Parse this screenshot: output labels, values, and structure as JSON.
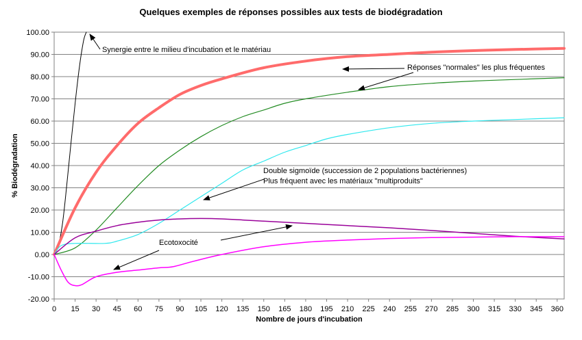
{
  "chart_data": {
    "type": "line",
    "title": "Quelques exemples de réponses possibles aux tests de biodégradation",
    "xlabel": "Nombre de jours d'incubation",
    "ylabel": "% Biodégradation",
    "xlim": [
      0,
      365
    ],
    "ylim": [
      -20,
      100
    ],
    "grid": "horizontal",
    "x_ticks": [
      "0",
      "15",
      "30",
      "45",
      "60",
      "75",
      "90",
      "105",
      "120",
      "135",
      "150",
      "165",
      "180",
      "195",
      "210",
      "225",
      "240",
      "255",
      "270",
      "285",
      "300",
      "315",
      "330",
      "345",
      "360"
    ],
    "y_ticks": [
      "100.00",
      "90.00",
      "80.00",
      "70.00",
      "60.00",
      "50.00",
      "40.00",
      "30.00",
      "20.00",
      "10.00",
      "0.00",
      "-10.00",
      "-20.00"
    ],
    "series": [
      {
        "color": "#000000",
        "x": [
          0,
          3,
          6,
          9,
          12,
          15,
          18,
          21,
          23
        ],
        "y": [
          0,
          4,
          14,
          31,
          50,
          68,
          84,
          96,
          100
        ]
      },
      {
        "color": "#ff6b6b",
        "x": [
          0,
          15,
          30,
          45,
          60,
          75,
          90,
          105,
          120,
          150,
          180,
          210,
          240,
          270,
          300,
          330,
          365
        ],
        "y": [
          0,
          21,
          37,
          49,
          59,
          66,
          72,
          76,
          79,
          84,
          87,
          89,
          90,
          91,
          91.7,
          92.2,
          92.7
        ]
      },
      {
        "color": "#228b22",
        "x": [
          0,
          15,
          30,
          45,
          60,
          75,
          90,
          105,
          120,
          135,
          150,
          165,
          180,
          210,
          240,
          270,
          300,
          330,
          365
        ],
        "y": [
          0,
          3,
          11,
          21,
          31,
          40,
          47,
          53,
          58,
          62,
          65,
          68,
          70,
          73,
          75.5,
          77,
          78,
          78.7,
          79.5
        ]
      },
      {
        "color": "#2ee8ee",
        "x": [
          0,
          5,
          15,
          36,
          45,
          60,
          75,
          90,
          105,
          120,
          135,
          150,
          165,
          180,
          195,
          210,
          240,
          270,
          300,
          330,
          365
        ],
        "y": [
          0,
          4,
          5,
          5,
          6,
          9,
          14,
          20,
          26,
          32,
          38,
          42,
          46,
          49,
          52,
          54,
          57,
          59,
          60,
          60.7,
          61.5
        ]
      },
      {
        "color": "#990099",
        "x": [
          0,
          15,
          30,
          45,
          60,
          75,
          90,
          105,
          120,
          135,
          150,
          180,
          210,
          240,
          270,
          300,
          330,
          365
        ],
        "y": [
          0,
          7.5,
          10.5,
          13,
          14.5,
          15.5,
          16,
          16.2,
          16,
          15.5,
          15,
          14,
          13,
          12,
          10.8,
          9.5,
          8.2,
          7
        ]
      },
      {
        "color": "#ff00ff",
        "x": [
          0,
          5,
          10,
          15,
          20,
          30,
          45,
          60,
          75,
          85,
          100,
          120,
          150,
          180,
          210,
          240,
          270,
          300,
          330,
          365
        ],
        "y": [
          0,
          -7,
          -12.5,
          -14,
          -13.5,
          -10,
          -8,
          -7,
          -6,
          -5.5,
          -3,
          0,
          3.5,
          5.5,
          6.5,
          7.2,
          7.6,
          7.8,
          8,
          8
        ]
      }
    ],
    "annotations": [
      {
        "text": "Synergie entre le milieu d'incubation et le matériau"
      },
      {
        "text": "Réponses \"normales\" les plus fréquentes"
      },
      {
        "text": "Double sigmoïde (succession de 2 populations bactériennes)"
      },
      {
        "text": "Plus fréquent avec les matériaux \"multiproduits\""
      },
      {
        "text": "Ecotoxocité"
      }
    ]
  }
}
